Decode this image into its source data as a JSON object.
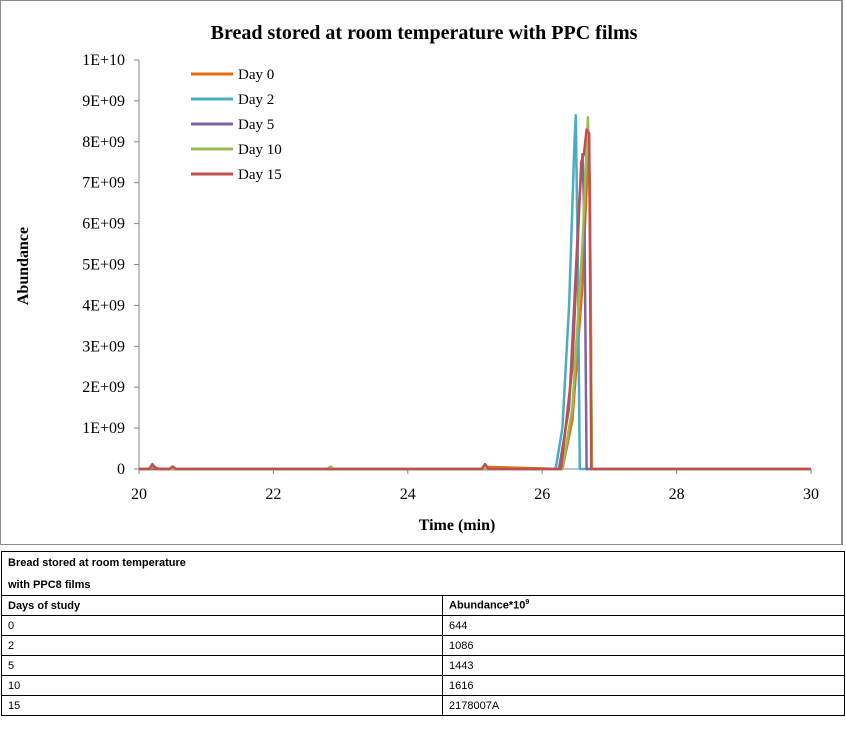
{
  "chart_data": {
    "type": "line",
    "title": "Bread stored at room temperature with PPC films",
    "xlabel": "Time (min)",
    "ylabel": "Abundance",
    "xlim": [
      20,
      30
    ],
    "ylim": [
      0,
      10000000000
    ],
    "x_ticks": [
      20,
      22,
      24,
      26,
      28,
      30
    ],
    "y_ticks": [
      "0",
      "1E+09",
      "2E+09",
      "3E+09",
      "4E+09",
      "5E+09",
      "6E+09",
      "7E+09",
      "8E+09",
      "9E+09",
      "1E+10"
    ],
    "legend_position": "top-left",
    "grid": false,
    "series": [
      {
        "name": "Day 0",
        "color": "#e46c0a",
        "x": [
          20.0,
          20.15,
          20.2,
          20.3,
          25.15,
          25.2,
          26.3,
          26.45,
          26.6,
          26.65,
          26.69,
          26.71,
          26.74,
          30.0
        ],
        "y": [
          0,
          0,
          80000000,
          0,
          0,
          50000000,
          0,
          1200000000,
          4500000000,
          6500000000,
          7800000000,
          7000000000,
          0,
          0
        ]
      },
      {
        "name": "Day 2",
        "color": "#4bacc6",
        "x": [
          20.0,
          26.2,
          26.3,
          26.4,
          26.48,
          26.5,
          26.53,
          26.56,
          30.0
        ],
        "y": [
          0,
          0,
          1000000000,
          4000000000,
          8000000000,
          8650000000,
          5000000000,
          0,
          0
        ]
      },
      {
        "name": "Day 5",
        "color": "#8064a2",
        "x": [
          20.0,
          26.25,
          26.4,
          26.55,
          26.6,
          26.63,
          26.66,
          30.0
        ],
        "y": [
          0,
          0,
          1500000000,
          6500000000,
          7700000000,
          6000000000,
          0,
          0
        ]
      },
      {
        "name": "Day 10",
        "color": "#9bbb59",
        "x": [
          20.0,
          20.15,
          20.2,
          20.25,
          22.8,
          22.85,
          22.9,
          26.3,
          26.45,
          26.6,
          26.68,
          26.71,
          26.74,
          30.0
        ],
        "y": [
          0,
          0,
          60000000,
          0,
          0,
          60000000,
          0,
          0,
          1500000000,
          5500000000,
          8600000000,
          6500000000,
          0,
          0
        ]
      },
      {
        "name": "Day 15",
        "color": "#c0504d",
        "x": [
          20.0,
          20.15,
          20.2,
          20.25,
          20.45,
          20.5,
          20.55,
          25.1,
          25.15,
          25.2,
          26.28,
          26.45,
          26.58,
          26.62,
          26.66,
          26.7,
          26.73,
          30.0
        ],
        "y": [
          0,
          0,
          120000000,
          0,
          0,
          60000000,
          0,
          0,
          120000000,
          0,
          0,
          2500000000,
          7500000000,
          7700000000,
          8300000000,
          8200000000,
          0,
          0
        ]
      }
    ]
  },
  "table": {
    "caption_line1": "Bread stored at room temperature",
    "caption_line2": "with PPC8 films",
    "header_days": "Days of study",
    "header_abundance": "Abundance*10",
    "header_abundance_exp": "9",
    "rows": [
      {
        "day": "0",
        "abundance": "644"
      },
      {
        "day": "2",
        "abundance": "1086"
      },
      {
        "day": "5",
        "abundance": "1443"
      },
      {
        "day": "10",
        "abundance": "1616"
      },
      {
        "day": "15",
        "abundance": "2178007A"
      }
    ]
  }
}
